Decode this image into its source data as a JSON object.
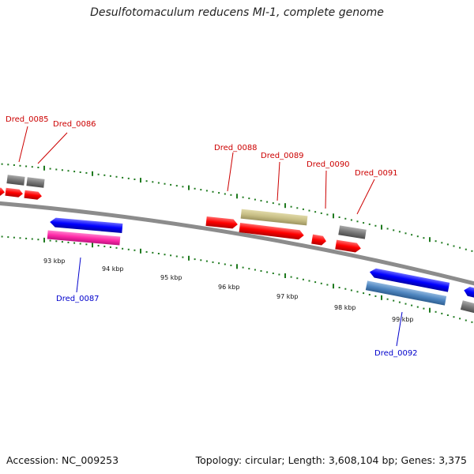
{
  "title": "Desulfotomaculum reducens MI-1, complete genome",
  "footer": {
    "accession": "Accession: NC_009253",
    "summary": "Topology: circular; Length: 3,608,104 bp; Genes: 3,375"
  },
  "colors": {
    "backbone": "#8c8c8c",
    "tick": "#1f7a1f",
    "forward_label": "#cc0000",
    "reverse_label": "#0000cc",
    "cds_red": "#ff0000",
    "cds_blue": "#0000ff",
    "gray": "#777777",
    "khaki": "#c8bf86",
    "magenta": "#ff2aa8",
    "steel": "#4f86c0"
  },
  "scale": {
    "labels": [
      "93 kbp",
      "94 kbp",
      "95 kbp",
      "96 kbp",
      "97 kbp",
      "98 kbp",
      "99 kbp"
    ]
  },
  "genes": {
    "forward": [
      "Dred_0085",
      "Dred_0086",
      "Dred_0088",
      "Dred_0089",
      "Dred_0090",
      "Dred_0091"
    ],
    "reverse": [
      "Dred_0087",
      "Dred_0092"
    ]
  }
}
